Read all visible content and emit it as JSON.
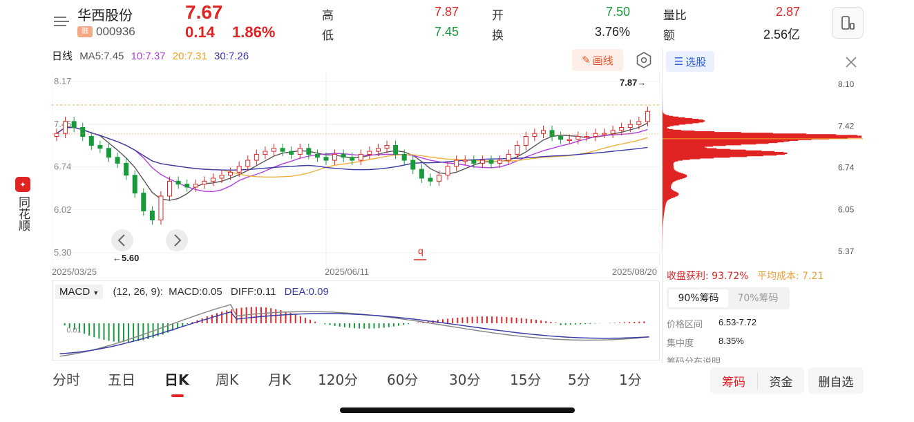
{
  "app": {
    "brand_name": "同花顺"
  },
  "header": {
    "stock_name": "华西股份",
    "badge": "融",
    "stock_code": "000936",
    "last_price": "7.67",
    "change_abs": "0.14",
    "change_pct": "1.86%",
    "quotes": [
      {
        "label": "高",
        "value": "7.87",
        "color": "red"
      },
      {
        "label": "低",
        "value": "7.45",
        "color": "green"
      },
      {
        "label": "开",
        "value": "7.50",
        "color": "green"
      },
      {
        "label": "换",
        "value": "3.76%",
        "color": "dark"
      },
      {
        "label": "量比",
        "value": "2.87",
        "color": "red"
      },
      {
        "label": "额",
        "value": "2.56亿",
        "color": "dark"
      }
    ]
  },
  "indicator_bar": {
    "period": "日线",
    "ma5": "MA5:7.45",
    "ma10": "10:7.37",
    "ma20": "20:7.31",
    "ma30": "30:7.26",
    "draw_button": "画线"
  },
  "kline": {
    "y_ticks": [
      "8.17",
      "7.45",
      "6.74",
      "6.02",
      "5.30"
    ],
    "high_marker": "7.87→",
    "low_marker": "←5.60",
    "dates": [
      "2025/03/25",
      "2025/06/11",
      "2025/08/20"
    ],
    "colors": {
      "up": "#e02424",
      "down": "#179a3a",
      "ma5": "#555555",
      "ma10": "#b040e0",
      "ma20": "#f0b040",
      "ma30": "#3a3aa8"
    }
  },
  "macd": {
    "selector": "MACD",
    "params": "(12, 26, 9):",
    "macd": "MACD:0.05",
    "diff": "DIFF:0.11",
    "dea": "DEA:0.09",
    "axis_label": "0.01"
  },
  "distribution": {
    "pick_button": "选股",
    "y_ticks": [
      "8.10",
      "7.42",
      "6.74",
      "6.05",
      "5.37"
    ],
    "profit_label": "收盘获利: 93.72%",
    "avg_cost_label": "平均成本: 7.21",
    "tabs": [
      "90%筹码",
      "70%筹码"
    ],
    "stats": [
      {
        "label": "价格区间",
        "value": "6.53-7.72"
      },
      {
        "label": "集中度",
        "value": "8.35%"
      },
      {
        "label": "筹码分布说明",
        "value": ""
      }
    ]
  },
  "period_tabs": [
    "分时",
    "五日",
    "日K",
    "周K",
    "月K",
    "120分",
    "60分",
    "30分",
    "15分",
    "5分",
    "1分"
  ],
  "active_period": "日K",
  "bottom_buttons": {
    "chip": "筹码",
    "fund": "资金",
    "del_fav": "删自选"
  }
}
